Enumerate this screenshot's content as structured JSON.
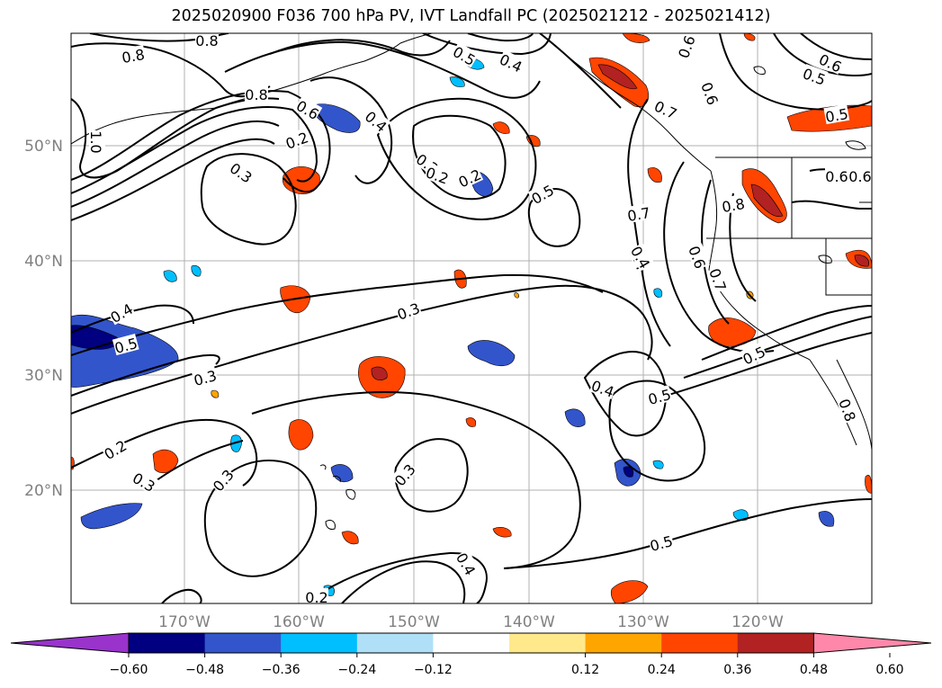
{
  "title": "2025020900 F036 700 hPa PV, IVT Landfall PC (2025021212 - 2025021412)",
  "latitude_labels": [
    "50°N",
    "40°N",
    "30°N",
    "20°N"
  ],
  "longitude_labels": [
    "170°W",
    "160°W",
    "150°W",
    "140°W",
    "130°W",
    "120°W"
  ],
  "contour_labels": [
    "0.8",
    "0.8",
    "0.8",
    "1.0",
    "0.3",
    "0.3",
    "0.6",
    "0.5",
    "0.4",
    "0.4",
    "0.3",
    "0.2",
    "0.5",
    "0.6",
    "0.5",
    "0.6",
    "0.5",
    "0.6",
    "0.8",
    "0.7",
    "0.6",
    "0.7",
    "0.4",
    "0.6",
    "0.5",
    "0.4",
    "0.5",
    "0.3",
    "0.2",
    "0.3",
    "0.3",
    "0.3",
    "0.4",
    "0.4",
    "0.5",
    "0.5",
    "0.2",
    "0.2",
    "0.2",
    "0.8",
    "0.4",
    "0.7",
    "0.6"
  ],
  "colorbar": {
    "ticks": [
      "−0.60",
      "−0.48",
      "−0.36",
      "−0.24",
      "−0.12",
      "0.12",
      "0.24",
      "0.36",
      "0.48",
      "0.60"
    ],
    "colors": [
      "#9933cc",
      "#000080",
      "#3355cc",
      "#00bfff",
      "#b0e0f8",
      "#ffffff",
      "#ffe98a",
      "#ffa500",
      "#ff4500",
      "#b22222",
      "#ff88aa"
    ]
  },
  "colors": {
    "positive_shading": [
      "#ffe98a",
      "#ffa500",
      "#ff4500",
      "#b22222"
    ],
    "negative_shading": [
      "#b0e0f8",
      "#00bfff",
      "#3355cc",
      "#000080"
    ],
    "contour": "#000000",
    "grid": "#b0b0b0",
    "coast": "#000000"
  }
}
